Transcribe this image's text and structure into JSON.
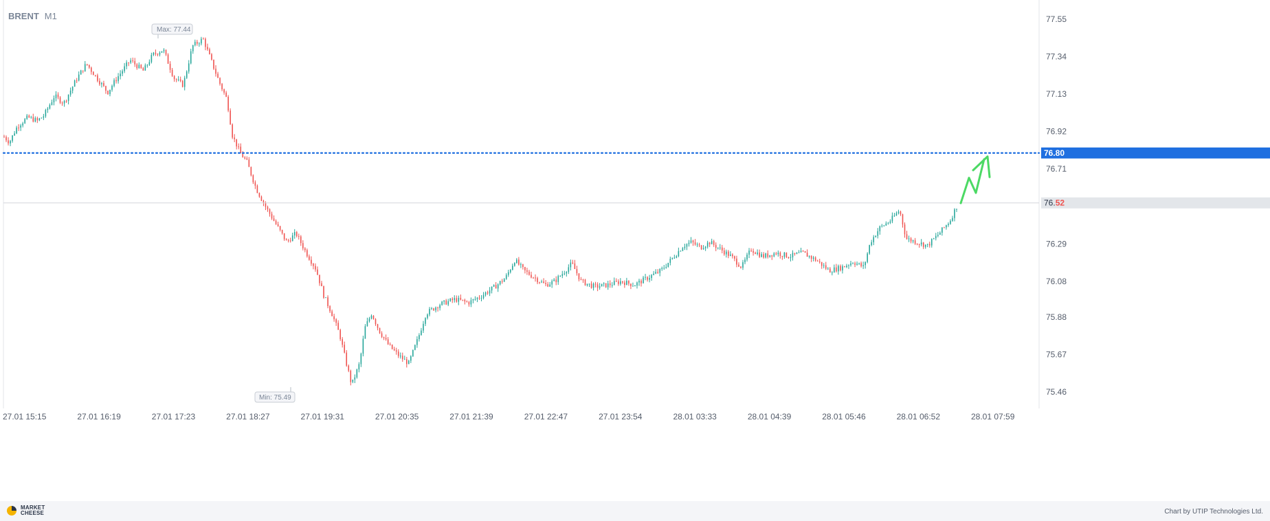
{
  "header": {
    "symbol": "BRENT",
    "timeframe": "M1"
  },
  "footer": {
    "logo_line1": "MARKET",
    "logo_line2": "CHEESE",
    "credit": "Chart by UTIP Technologies Ltd."
  },
  "colors": {
    "up": "#26a69a",
    "down": "#ef5350",
    "level": "#1f6fe0",
    "arrow": "#4cd964",
    "axis_text": "#555d6b",
    "grid": "#e3e6ea"
  },
  "chart_data": {
    "type": "candlestick",
    "y_ticks": [
      "77.55",
      "77.34",
      "77.13",
      "76.92",
      "76.71",
      "76.29",
      "76.08",
      "75.88",
      "75.67",
      "75.46"
    ],
    "x_ticks": [
      "27.01 15:15",
      "27.01 16:19",
      "27.01 17:23",
      "27.01 18:27",
      "27.01 19:31",
      "27.01 20:35",
      "27.01 21:39",
      "27.01 22:47",
      "27.01 23:54",
      "28.01 03:33",
      "28.01 04:39",
      "28.01 05:46",
      "28.01 06:52",
      "28.01 07:59"
    ],
    "ylim": [
      75.4,
      77.6
    ],
    "annotations": {
      "max_label": "Max: 77.44",
      "min_label": "Min: 75.49"
    },
    "level": {
      "value": 76.8,
      "label": "76.80"
    },
    "current_price": {
      "value": 76.52,
      "label_main": "76.",
      "label_tail": "52"
    },
    "path": [
      [
        0,
        76.89
      ],
      [
        4,
        76.86
      ],
      [
        10,
        76.95
      ],
      [
        18,
        77.0
      ],
      [
        25,
        76.98
      ],
      [
        30,
        77.01
      ],
      [
        38,
        77.12
      ],
      [
        45,
        77.08
      ],
      [
        55,
        77.22
      ],
      [
        62,
        77.3
      ],
      [
        70,
        77.22
      ],
      [
        78,
        77.14
      ],
      [
        85,
        77.22
      ],
      [
        95,
        77.32
      ],
      [
        105,
        77.26
      ],
      [
        112,
        77.35
      ],
      [
        120,
        77.38
      ],
      [
        128,
        77.22
      ],
      [
        135,
        77.18
      ],
      [
        142,
        77.4
      ],
      [
        150,
        77.44
      ],
      [
        157,
        77.3
      ],
      [
        162,
        77.2
      ],
      [
        168,
        77.1
      ],
      [
        172,
        76.9
      ],
      [
        178,
        76.8
      ],
      [
        183,
        76.75
      ],
      [
        190,
        76.6
      ],
      [
        197,
        76.5
      ],
      [
        205,
        76.4
      ],
      [
        213,
        76.3
      ],
      [
        220,
        76.35
      ],
      [
        227,
        76.25
      ],
      [
        235,
        76.15
      ],
      [
        241,
        76.0
      ],
      [
        247,
        75.9
      ],
      [
        253,
        75.78
      ],
      [
        258,
        75.62
      ],
      [
        262,
        75.5
      ],
      [
        268,
        75.62
      ],
      [
        272,
        75.82
      ],
      [
        277,
        75.9
      ],
      [
        283,
        75.8
      ],
      [
        290,
        75.72
      ],
      [
        298,
        75.66
      ],
      [
        305,
        75.62
      ],
      [
        312,
        75.76
      ],
      [
        318,
        75.9
      ],
      [
        328,
        75.95
      ],
      [
        340,
        75.98
      ],
      [
        350,
        75.96
      ],
      [
        360,
        76.0
      ],
      [
        370,
        76.05
      ],
      [
        378,
        76.1
      ],
      [
        385,
        76.2
      ],
      [
        392,
        76.14
      ],
      [
        400,
        76.1
      ],
      [
        408,
        76.06
      ],
      [
        415,
        76.08
      ],
      [
        423,
        76.14
      ],
      [
        428,
        76.18
      ],
      [
        435,
        76.08
      ],
      [
        445,
        76.05
      ],
      [
        455,
        76.06
      ],
      [
        465,
        76.08
      ],
      [
        475,
        76.06
      ],
      [
        485,
        76.1
      ],
      [
        495,
        76.14
      ],
      [
        505,
        76.22
      ],
      [
        512,
        76.28
      ],
      [
        518,
        76.3
      ],
      [
        525,
        76.27
      ],
      [
        532,
        76.3
      ],
      [
        540,
        76.26
      ],
      [
        548,
        76.22
      ],
      [
        556,
        76.16
      ],
      [
        563,
        76.26
      ],
      [
        572,
        76.22
      ],
      [
        582,
        76.24
      ],
      [
        592,
        76.22
      ],
      [
        602,
        76.24
      ],
      [
        612,
        76.2
      ],
      [
        622,
        76.14
      ],
      [
        632,
        76.16
      ],
      [
        640,
        76.19
      ],
      [
        648,
        76.16
      ],
      [
        653,
        76.3
      ],
      [
        660,
        76.38
      ],
      [
        668,
        76.42
      ],
      [
        675,
        76.48
      ],
      [
        680,
        76.32
      ],
      [
        688,
        76.3
      ],
      [
        696,
        76.28
      ],
      [
        705,
        76.35
      ],
      [
        713,
        76.42
      ],
      [
        718,
        76.5
      ]
    ]
  }
}
